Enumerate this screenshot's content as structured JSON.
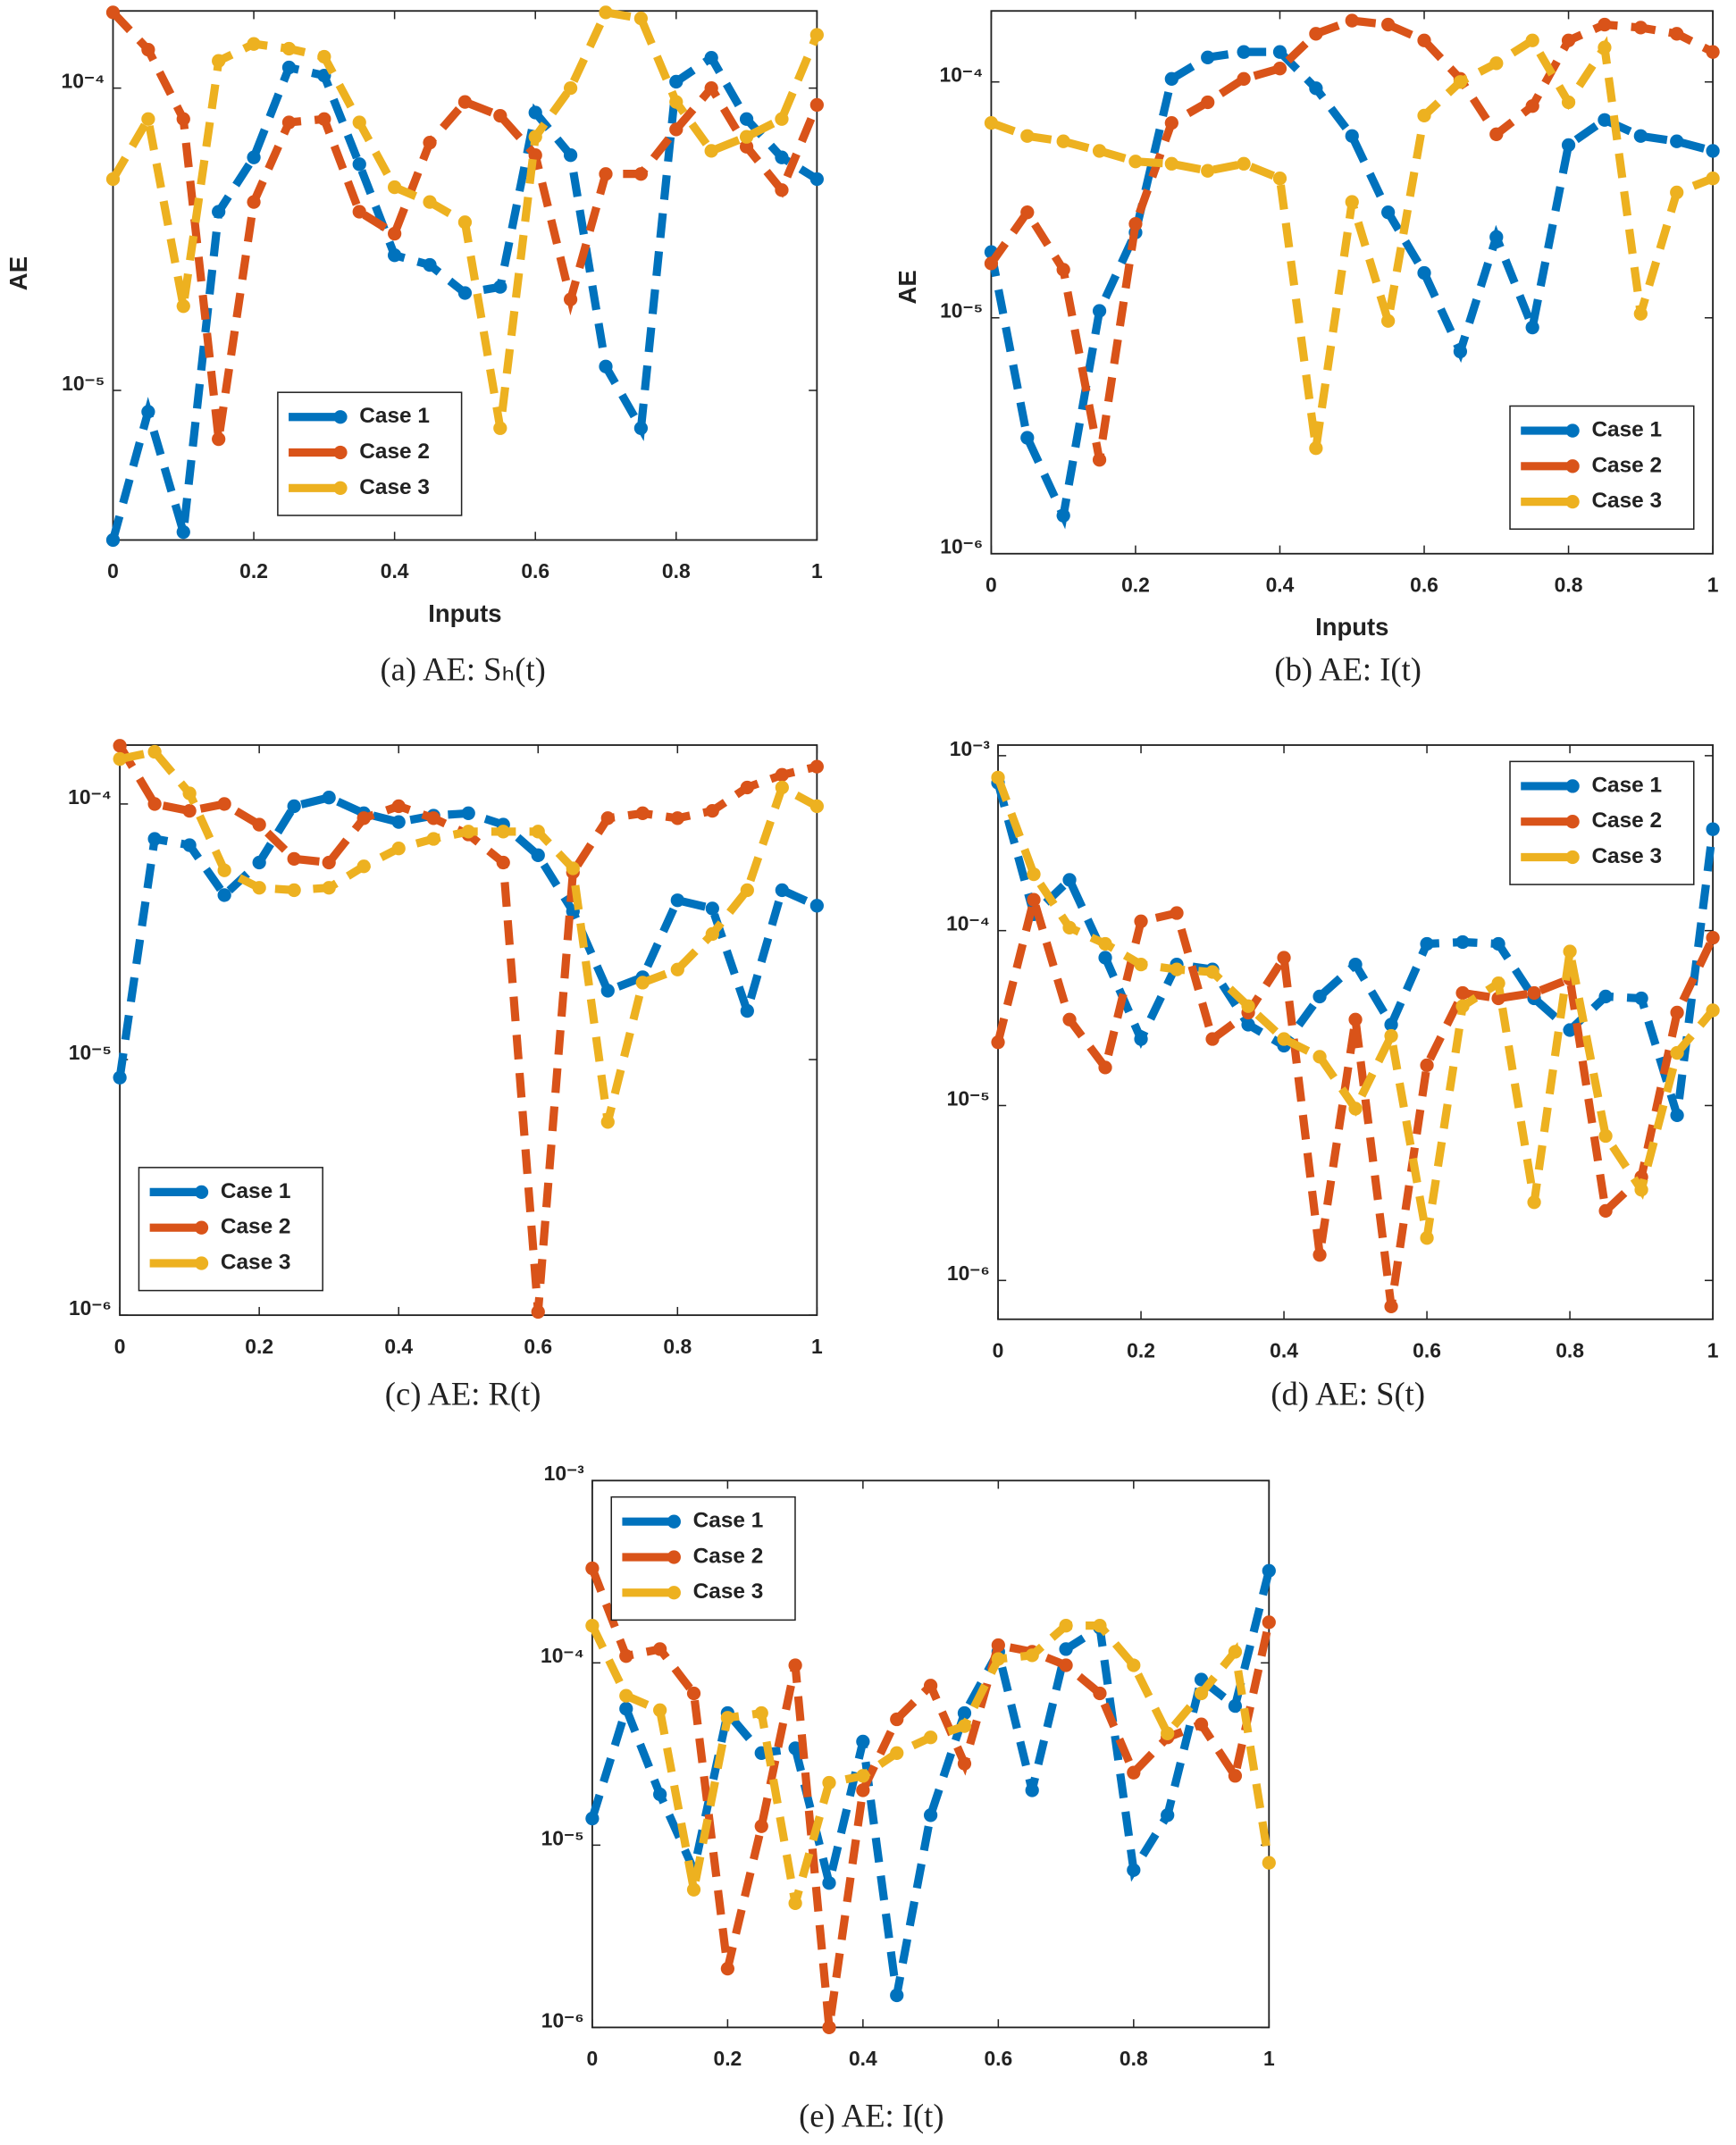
{
  "chart_data": [
    {
      "type": "line",
      "caption": "(a) AE: Sₕ(t)",
      "xlabel": "Inputs",
      "ylabel": "AE",
      "log_y": true,
      "legend": "lower center",
      "x": [
        0,
        0.05,
        0.1,
        0.15,
        0.2,
        0.25,
        0.3,
        0.35,
        0.4,
        0.45,
        0.5,
        0.55,
        0.6,
        0.65,
        0.7,
        0.75,
        0.8,
        0.85,
        0.9,
        0.95,
        1
      ],
      "xlim": [
        0,
        1
      ],
      "xticks": [
        0,
        0.2,
        0.4,
        0.6,
        0.8,
        1
      ],
      "ylim": [
        3.2e-06,
        0.00018
      ],
      "yticks": [
        {
          "value": 1e-05,
          "label": "10⁻⁵"
        },
        {
          "value": 0.0001,
          "label": "10⁻⁴"
        }
      ],
      "series": [
        {
          "name": "Case 1",
          "color": "#0072BD",
          "values": [
            3.2e-06,
            8.5e-06,
            3.4e-06,
            3.9e-05,
            5.9e-05,
            0.000117,
            0.00011,
            5.6e-05,
            2.8e-05,
            2.6e-05,
            2.1e-05,
            2.2e-05,
            8.3e-05,
            6e-05,
            1.2e-05,
            7.5e-06,
            0.000105,
            0.000126,
            7.9e-05,
            5.9e-05,
            5e-05
          ]
        },
        {
          "name": "Case 2",
          "color": "#D95319",
          "values": [
            0.000178,
            0.000134,
            7.9e-05,
            6.9e-06,
            4.2e-05,
            7.7e-05,
            7.9e-05,
            3.9e-05,
            3.3e-05,
            6.6e-05,
            9e-05,
            8.1e-05,
            6e-05,
            2e-05,
            5.2e-05,
            5.2e-05,
            7.3e-05,
            0.0001,
            6.4e-05,
            4.6e-05,
            8.8e-05
          ]
        },
        {
          "name": "Case 3",
          "color": "#EDB120",
          "values": [
            5e-05,
            7.9e-05,
            1.9e-05,
            0.000123,
            0.00014,
            0.000135,
            0.000127,
            7.7e-05,
            4.7e-05,
            4.2e-05,
            3.6e-05,
            7.5e-06,
            6.9e-05,
            0.0001,
            0.000178,
            0.00017,
            9e-05,
            6.2e-05,
            6.9e-05,
            7.9e-05,
            0.00015
          ]
        }
      ]
    },
    {
      "type": "line",
      "caption": "(b) AE: I(t)",
      "xlabel": "Inputs",
      "ylabel": "AE",
      "log_y": true,
      "legend": "lower right",
      "x": [
        0,
        0.05,
        0.1,
        0.15,
        0.2,
        0.25,
        0.3,
        0.35,
        0.4,
        0.45,
        0.5,
        0.55,
        0.6,
        0.65,
        0.7,
        0.75,
        0.8,
        0.85,
        0.9,
        0.95,
        1
      ],
      "xlim": [
        0,
        1
      ],
      "xticks": [
        0,
        0.2,
        0.4,
        0.6,
        0.8,
        1
      ],
      "ylim": [
        1e-06,
        0.0002
      ],
      "yticks": [
        {
          "value": 1e-06,
          "label": "10⁻⁶"
        },
        {
          "value": 1e-05,
          "label": "10⁻⁵"
        },
        {
          "value": 0.0001,
          "label": "10⁻⁴"
        }
      ],
      "series": [
        {
          "name": "Case 1",
          "color": "#0072BD",
          "values": [
            1.9e-05,
            3.1e-06,
            1.45e-06,
            1.07e-05,
            2.3e-05,
            0.000103,
            0.000127,
            0.000134,
            0.000134,
            9.4e-05,
            5.9e-05,
            2.8e-05,
            1.55e-05,
            7.2e-06,
            2.2e-05,
            9.1e-06,
            5.4e-05,
            6.9e-05,
            5.9e-05,
            5.6e-05,
            5.1e-05
          ]
        },
        {
          "name": "Case 2",
          "color": "#D95319",
          "values": [
            1.7e-05,
            2.8e-05,
            1.6e-05,
            2.5e-06,
            2.5e-05,
            6.7e-05,
            8.2e-05,
            0.000103,
            0.000114,
            0.00016,
            0.000182,
            0.000175,
            0.00015,
            0.000103,
            6e-05,
            7.9e-05,
            0.00015,
            0.000175,
            0.00017,
            0.00016,
            0.000134
          ]
        },
        {
          "name": "Case 3",
          "color": "#EDB120",
          "values": [
            6.7e-05,
            5.9e-05,
            5.6e-05,
            5.1e-05,
            4.6e-05,
            4.5e-05,
            4.2e-05,
            4.5e-05,
            3.9e-05,
            2.8e-06,
            3.1e-05,
            9.7e-06,
            7.2e-05,
            0.0001,
            0.00012,
            0.00015,
            8.2e-05,
            0.00014,
            1.04e-05,
            3.4e-05,
            3.9e-05
          ]
        }
      ]
    },
    {
      "type": "line",
      "caption": "(c) AE: R(t)",
      "log_y": true,
      "legend": "lower left",
      "x": [
        0,
        0.05,
        0.1,
        0.15,
        0.2,
        0.25,
        0.3,
        0.35,
        0.4,
        0.45,
        0.5,
        0.55,
        0.6,
        0.65,
        0.7,
        0.75,
        0.8,
        0.85,
        0.9,
        0.95,
        1
      ],
      "xlim": [
        0,
        1
      ],
      "xticks": [
        0,
        0.2,
        0.4,
        0.6,
        0.8,
        1
      ],
      "ylim": [
        1e-06,
        0.00017
      ],
      "yticks": [
        {
          "value": 1e-06,
          "label": "10⁻⁶"
        },
        {
          "value": 1e-05,
          "label": "10⁻⁵"
        },
        {
          "value": 0.0001,
          "label": "10⁻⁴"
        }
      ],
      "series": [
        {
          "name": "Case 1",
          "color": "#0072BD",
          "values": [
            8.5e-06,
            7.3e-05,
            6.9e-05,
            4.4e-05,
            5.9e-05,
            9.8e-05,
            0.000106,
            9.2e-05,
            8.5e-05,
            9e-05,
            9.2e-05,
            8.3e-05,
            6.3e-05,
            3.8e-05,
            1.86e-05,
            2.1e-05,
            4.2e-05,
            3.9e-05,
            1.55e-05,
            4.6e-05,
            4e-05
          ]
        },
        {
          "name": "Case 2",
          "color": "#D95319",
          "values": [
            0.000169,
            0.0001,
            9.4e-05,
            0.0001,
            8.3e-05,
            6.1e-05,
            5.9e-05,
            8.8e-05,
            9.8e-05,
            8.8e-05,
            7.6e-05,
            5.9e-05,
            1.03e-06,
            5.4e-05,
            8.8e-05,
            9.2e-05,
            8.8e-05,
            9.4e-05,
            0.000116,
            0.00013,
            0.00014
          ]
        },
        {
          "name": "Case 3",
          "color": "#EDB120",
          "values": [
            0.00015,
            0.00016,
            0.00011,
            5.5e-05,
            4.7e-05,
            4.6e-05,
            4.7e-05,
            5.7e-05,
            6.7e-05,
            7.3e-05,
            7.8e-05,
            7.8e-05,
            7.8e-05,
            5.6e-05,
            5.7e-06,
            2e-05,
            2.25e-05,
            3.1e-05,
            4.6e-05,
            0.000116,
            9.8e-05
          ]
        }
      ]
    },
    {
      "type": "line",
      "caption": "(d) AE: S(t)",
      "log_y": true,
      "legend": "upper right",
      "x": [
        0,
        0.05,
        0.1,
        0.15,
        0.2,
        0.25,
        0.3,
        0.35,
        0.4,
        0.45,
        0.5,
        0.55,
        0.6,
        0.65,
        0.7,
        0.75,
        0.8,
        0.85,
        0.9,
        0.95,
        1
      ],
      "xlim": [
        0,
        1
      ],
      "xticks": [
        0,
        0.2,
        0.4,
        0.6,
        0.8,
        1
      ],
      "ylim": [
        6e-07,
        0.00115
      ],
      "yticks": [
        {
          "value": 1e-06,
          "label": "10⁻⁶"
        },
        {
          "value": 1e-05,
          "label": "10⁻⁵"
        },
        {
          "value": 0.0001,
          "label": "10⁻⁴"
        },
        {
          "value": 0.001,
          "label": "10⁻³"
        }
      ],
      "series": [
        {
          "name": "Case 1",
          "color": "#0072BD",
          "values": [
            0.0007,
            0.000124,
            0.000195,
            7e-05,
            2.4e-05,
            6.4e-05,
            6e-05,
            2.9e-05,
            2.2e-05,
            4.2e-05,
            6.4e-05,
            2.9e-05,
            8.4e-05,
            8.6e-05,
            8.4e-05,
            4.1e-05,
            2.7e-05,
            4.2e-05,
            4.1e-05,
            8.8e-06,
            0.00038
          ]
        },
        {
          "name": "Case 2",
          "color": "#D95319",
          "values": [
            2.3e-05,
            0.00015,
            3.1e-05,
            1.65e-05,
            0.000113,
            0.000126,
            2.4e-05,
            3.4e-05,
            7e-05,
            1.4e-06,
            3.1e-05,
            7.1e-07,
            1.7e-05,
            4.4e-05,
            4.1e-05,
            4.4e-05,
            5.3e-05,
            2.5e-06,
            3.9e-06,
            3.4e-05,
            9.1e-05
          ]
        },
        {
          "name": "Case 3",
          "color": "#EDB120",
          "values": [
            0.00075,
            0.00021,
            0.000104,
            8.4e-05,
            6.4e-05,
            6e-05,
            5.8e-05,
            3.7e-05,
            2.4e-05,
            1.9e-05,
            9.6e-06,
            2.5e-05,
            1.75e-06,
            3.7e-05,
            5e-05,
            2.8e-06,
            7.6e-05,
            6.7e-06,
            3.3e-06,
            2e-05,
            3.5e-05
          ]
        }
      ]
    },
    {
      "type": "line",
      "caption": "(e) AE: I(t)",
      "log_y": true,
      "legend": "upper left",
      "x": [
        0,
        0.05,
        0.1,
        0.15,
        0.2,
        0.25,
        0.3,
        0.35,
        0.4,
        0.45,
        0.5,
        0.55,
        0.6,
        0.65,
        0.7,
        0.75,
        0.8,
        0.85,
        0.9,
        0.95,
        1
      ],
      "xlim": [
        0,
        1
      ],
      "xticks": [
        0,
        0.2,
        0.4,
        0.6,
        0.8,
        1
      ],
      "ylim": [
        1e-06,
        0.001
      ],
      "yticks": [
        {
          "value": 1e-06,
          "label": "10⁻⁶"
        },
        {
          "value": 1e-05,
          "label": "10⁻⁵"
        },
        {
          "value": 0.0001,
          "label": "10⁻⁴"
        },
        {
          "value": 0.001,
          "label": "10⁻³"
        }
      ],
      "series": [
        {
          "name": "Case 1",
          "color": "#0072BD",
          "values": [
            1.4e-05,
            5.6e-05,
            1.9e-05,
            7.3e-06,
            5.3e-05,
            3.2e-05,
            3.4e-05,
            6.2e-06,
            3.7e-05,
            1.5e-06,
            1.46e-05,
            5.3e-05,
            0.000115,
            2e-05,
            0.000119,
            0.000156,
            7.3e-06,
            1.46e-05,
            8.1e-05,
            5.8e-05,
            0.00032
          ]
        },
        {
          "name": "Case 2",
          "color": "#D95319",
          "values": [
            0.00033,
            0.000109,
            0.000119,
            6.8e-05,
            2.1e-06,
            1.27e-05,
            9.7e-05,
            1e-06,
            2e-05,
            4.9e-05,
            7.5e-05,
            2.8e-05,
            0.000125,
            0.000115,
            9.7e-05,
            6.8e-05,
            2.5e-05,
            3.9e-05,
            4.6e-05,
            2.4e-05,
            0.000167
          ]
        },
        {
          "name": "Case 3",
          "color": "#EDB120",
          "values": [
            0.00016,
            6.6e-05,
            5.5e-05,
            5.7e-06,
            5e-05,
            5.3e-05,
            4.8e-06,
            2.2e-05,
            2.4e-05,
            3.2e-05,
            3.9e-05,
            4.5e-05,
            0.000105,
            0.00011,
            0.00016,
            0.00016,
            9.7e-05,
            4.1e-05,
            6.8e-05,
            0.000115,
            8e-06
          ]
        }
      ]
    }
  ]
}
